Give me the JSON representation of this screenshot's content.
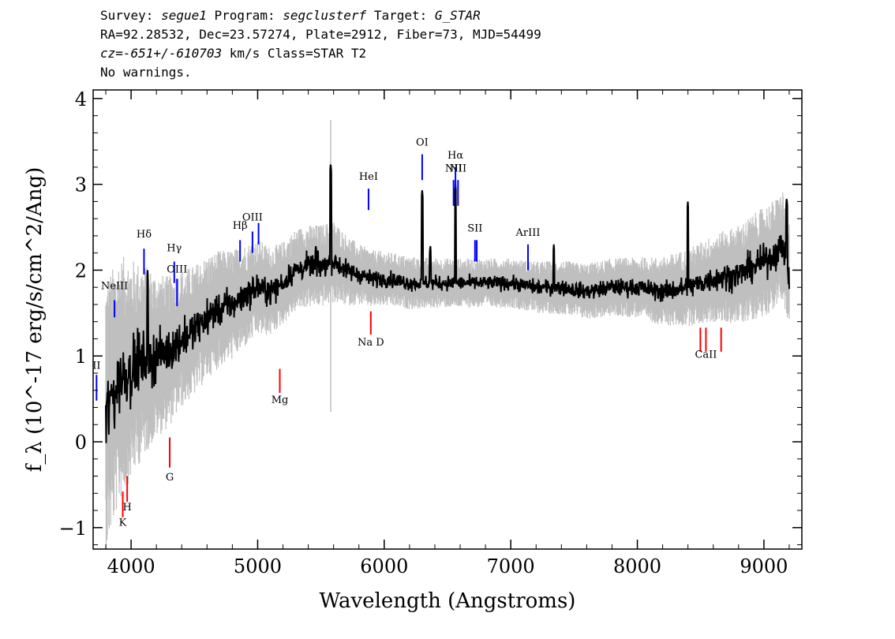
{
  "header": {
    "line1": {
      "survey_label": "Survey:",
      "survey": "segue1",
      "program_label": "Program:",
      "program": "segclusterf",
      "target_label": "Target:",
      "target": "G_STAR"
    },
    "line2": "RA=92.28532, Dec=23.57274, Plate=2912, Fiber=73, MJD=54499",
    "line3": {
      "cz": "cz=-651+/-610703",
      "rest": "km/s Class=STAR T2"
    },
    "line4": "No warnings."
  },
  "chart_data": {
    "type": "line",
    "title": "",
    "xlabel": "Wavelength (Angstroms)",
    "ylabel": "f_λ (10^-17 erg/s/cm^2/Ang)",
    "xlim": [
      3700,
      9300
    ],
    "ylim": [
      -1.25,
      4.1
    ],
    "xticks": [
      4000,
      5000,
      6000,
      7000,
      8000,
      9000
    ],
    "yticks": [
      -1,
      0,
      1,
      2,
      3,
      4
    ],
    "series": [
      {
        "kind": "flux",
        "color": "#000000",
        "x": [
          3800,
          3850,
          3900,
          3950,
          4000,
          4100,
          4200,
          4300,
          4400,
          4500,
          4600,
          4700,
          4800,
          4900,
          5000,
          5100,
          5200,
          5300,
          5400,
          5500,
          5600,
          5700,
          5800,
          5900,
          6000,
          6100,
          6200,
          6300,
          6400,
          6500,
          6600,
          6700,
          6800,
          6900,
          7000,
          7200,
          7400,
          7600,
          7800,
          8000,
          8200,
          8400,
          8600,
          8800,
          9000,
          9100,
          9150,
          9200
        ],
        "y": [
          0.3,
          0.5,
          0.7,
          0.8,
          0.85,
          0.95,
          1.0,
          1.05,
          1.2,
          1.3,
          1.45,
          1.55,
          1.6,
          1.7,
          1.8,
          1.75,
          1.85,
          2.0,
          2.05,
          2.05,
          2.1,
          2.0,
          1.95,
          1.9,
          1.9,
          1.88,
          1.85,
          1.85,
          1.85,
          1.85,
          1.85,
          1.85,
          1.85,
          1.85,
          1.85,
          1.8,
          1.8,
          1.75,
          1.8,
          1.8,
          1.75,
          1.8,
          1.9,
          1.95,
          2.1,
          2.2,
          2.3,
          1.9
        ],
        "spikes": [
          [
            5577,
            3.25
          ],
          [
            6300,
            2.95
          ],
          [
            6364,
            2.3
          ],
          [
            6563,
            3.0
          ],
          [
            8399,
            2.8
          ],
          [
            9180,
            2.85
          ],
          [
            4130,
            2.0
          ],
          [
            5460,
            2.3
          ],
          [
            7340,
            2.3
          ]
        ]
      },
      {
        "kind": "noise",
        "color": "#bfbfbf",
        "x": [
          3800,
          3900,
          4000,
          4200,
          4400,
          4600,
          4800,
          5000,
          5200,
          5400,
          5600,
          5800,
          6000,
          6500,
          7000,
          7500,
          8000,
          8500,
          9000,
          9200
        ],
        "y": [
          1.0,
          0.9,
          0.8,
          0.6,
          0.5,
          0.45,
          0.4,
          0.35,
          0.3,
          0.3,
          0.3,
          0.22,
          0.2,
          0.18,
          0.18,
          0.2,
          0.22,
          0.3,
          0.4,
          0.4
        ]
      }
    ],
    "emission_lines": [
      {
        "label": "NeIII",
        "wave": 3869,
        "y_top": 1.65,
        "y_bot": 1.45,
        "label_y": 1.78
      },
      {
        "label": "Hδ",
        "wave": 4102,
        "y_top": 2.25,
        "y_bot": 1.95,
        "label_y": 2.38
      },
      {
        "label": "Hγ",
        "wave": 4341,
        "y_top": 2.1,
        "y_bot": 1.85,
        "label_y": 2.22
      },
      {
        "label": "OIII",
        "wave": 4363,
        "y_top": 1.9,
        "y_bot": 1.58,
        "label_y": 1.97
      },
      {
        "label": "Hβ",
        "wave": 4861,
        "y_top": 2.35,
        "y_bot": 2.1,
        "label_y": 2.48
      },
      {
        "label": "OIII",
        "wave": 4959,
        "y_top": 2.45,
        "y_bot": 2.2,
        "label_y": 2.58
      },
      {
        "label": "",
        "wave": 5007,
        "y_top": 2.55,
        "y_bot": 2.3,
        "label_y": 0
      },
      {
        "label": "HeI",
        "wave": 5876,
        "y_top": 2.95,
        "y_bot": 2.7,
        "label_y": 3.05
      },
      {
        "label": "OI",
        "wave": 6300,
        "y_top": 3.35,
        "y_bot": 3.05,
        "label_y": 3.45
      },
      {
        "label": "NII",
        "wave": 6548,
        "y_top": 3.05,
        "y_bot": 2.75,
        "label_y": 3.15
      },
      {
        "label": "Hα",
        "wave": 6563,
        "y_top": 3.2,
        "y_bot": 2.95,
        "label_y": 3.3
      },
      {
        "label": "NII",
        "wave": 6583,
        "y_top": 3.05,
        "y_bot": 2.75,
        "label_y": 3.15
      },
      {
        "label": "SII",
        "wave": 6717,
        "y_top": 2.35,
        "y_bot": 2.1,
        "label_y": 2.45
      },
      {
        "label": "",
        "wave": 6731,
        "y_top": 2.35,
        "y_bot": 2.1,
        "label_y": 0
      },
      {
        "label": "ArIII",
        "wave": 7136,
        "y_top": 2.3,
        "y_bot": 2.0,
        "label_y": 2.4
      },
      {
        "label": "II",
        "wave": 3727,
        "y_top": 0.78,
        "y_bot": 0.48,
        "label_y": 0.85
      }
    ],
    "absorption_lines": [
      {
        "label": "K",
        "wave": 3934,
        "y_top": -0.58,
        "y_bot": -0.88,
        "label_y": -0.98
      },
      {
        "label": "H",
        "wave": 3969,
        "y_top": -0.4,
        "y_bot": -0.7,
        "label_y": -0.8
      },
      {
        "label": "G",
        "wave": 4305,
        "y_top": 0.05,
        "y_bot": -0.3,
        "label_y": -0.45
      },
      {
        "label": "Mg",
        "wave": 5175,
        "y_top": 0.85,
        "y_bot": 0.57,
        "label_y": 0.45
      },
      {
        "label": "Na D",
        "wave": 5894,
        "y_top": 1.52,
        "y_bot": 1.25,
        "label_y": 1.12
      },
      {
        "label": "",
        "wave": 8498,
        "y_top": 1.33,
        "y_bot": 1.05,
        "label_y": 0
      },
      {
        "label": "CaII",
        "wave": 8542,
        "y_top": 1.33,
        "y_bot": 1.05,
        "label_y": 0.98
      },
      {
        "label": "",
        "wave": 8662,
        "y_top": 1.33,
        "y_bot": 1.05,
        "label_y": 0
      }
    ],
    "emission_color": "#0000ff",
    "absorption_color": "#ff0000"
  }
}
